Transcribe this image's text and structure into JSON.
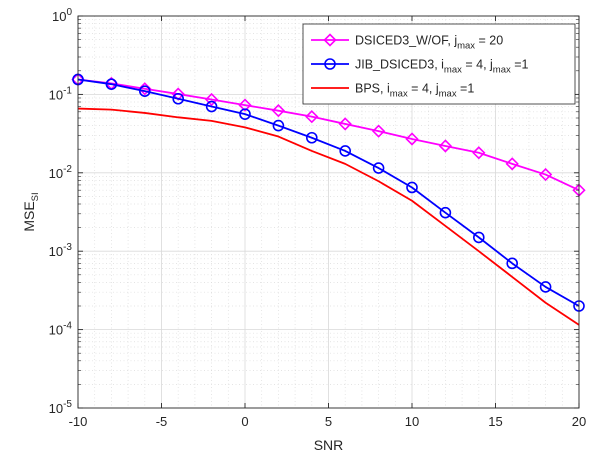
{
  "chart_data": {
    "type": "line",
    "xlabel": "SNR",
    "ylabel": "MSE",
    "ylabel_subscript": "SI",
    "x_scale": "linear",
    "y_scale": "log",
    "xlim": [
      -10,
      20
    ],
    "ylim": [
      1e-05,
      1
    ],
    "grid": true,
    "minor_grid": true,
    "legend_position": "top-right",
    "xticks": [
      -10,
      -5,
      0,
      5,
      10,
      15,
      20
    ],
    "xtick_labels": [
      "-10",
      "-5",
      "0",
      "5",
      "10",
      "15",
      "20"
    ],
    "yticks": [
      1e-05,
      0.0001,
      0.001,
      0.01,
      0.1,
      1
    ],
    "ytick_labels": [
      {
        "base": "10",
        "exp": "-5"
      },
      {
        "base": "10",
        "exp": "-4"
      },
      {
        "base": "10",
        "exp": "-3"
      },
      {
        "base": "10",
        "exp": "-2"
      },
      {
        "base": "10",
        "exp": "-1"
      },
      {
        "base": "10",
        "exp": "0"
      }
    ],
    "x": [
      -10,
      -8,
      -6,
      -4,
      -2,
      0,
      2,
      4,
      6,
      8,
      10,
      12,
      14,
      16,
      18,
      20
    ],
    "series": [
      {
        "name": "DSICED3_W/OF, j",
        "legend_parts": [
          {
            "t": "DSICED3_W/OF, j",
            "sub": false
          },
          {
            "t": "max",
            "sub": true
          },
          {
            "t": " = 20",
            "sub": false
          }
        ],
        "color": "#ff00ff",
        "marker": "diamond",
        "values": [
          0.155,
          0.138,
          0.118,
          0.101,
          0.086,
          0.073,
          0.062,
          0.052,
          0.042,
          0.034,
          0.027,
          0.022,
          0.018,
          0.013,
          0.0095,
          0.006
        ]
      },
      {
        "name": "JIB_DSICED3, i",
        "legend_parts": [
          {
            "t": "JIB_DSICED3, i",
            "sub": false
          },
          {
            "t": "max",
            "sub": true
          },
          {
            "t": " = 4, j",
            "sub": false
          },
          {
            "t": "max",
            "sub": true
          },
          {
            "t": " =1",
            "sub": false
          }
        ],
        "color": "#0000ff",
        "marker": "circle",
        "values": [
          0.155,
          0.135,
          0.11,
          0.088,
          0.07,
          0.056,
          0.04,
          0.028,
          0.019,
          0.0115,
          0.0065,
          0.0031,
          0.0015,
          0.0007,
          0.00035,
          0.0002
        ]
      },
      {
        "name": "BPS, i",
        "legend_parts": [
          {
            "t": "BPS, i",
            "sub": false
          },
          {
            "t": "max",
            "sub": true
          },
          {
            "t": " = 4, j",
            "sub": false
          },
          {
            "t": "max",
            "sub": true
          },
          {
            "t": " =1",
            "sub": false
          }
        ],
        "color": "#ff0000",
        "marker": "none",
        "values": [
          0.066,
          0.064,
          0.058,
          0.051,
          0.046,
          0.038,
          0.029,
          0.019,
          0.013,
          0.0078,
          0.0044,
          0.0021,
          0.001,
          0.00047,
          0.00022,
          0.000115
        ]
      }
    ]
  }
}
